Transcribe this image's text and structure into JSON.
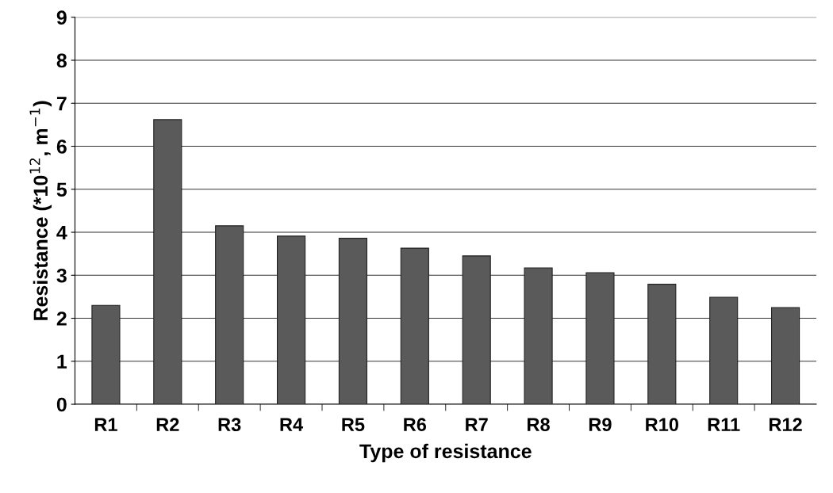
{
  "chart_data": {
    "type": "bar",
    "xlabel": "Type of resistance",
    "ylabel": "Resistance (*10$^{12}$, m$^{−1}$)",
    "categories": [
      "R1",
      "R2",
      "R3",
      "R4",
      "R5",
      "R6",
      "R7",
      "R8",
      "R9",
      "R10",
      "R11",
      "R12"
    ],
    "values": [
      2.3,
      6.62,
      4.15,
      3.91,
      3.86,
      3.63,
      3.45,
      3.17,
      3.06,
      2.79,
      2.49,
      2.25
    ],
    "color": "#5a5a5a",
    "ylim": [
      0,
      9
    ],
    "yticks": [
      0,
      1,
      2,
      3,
      4,
      5,
      6,
      7,
      8,
      9
    ],
    "grid": "y"
  }
}
